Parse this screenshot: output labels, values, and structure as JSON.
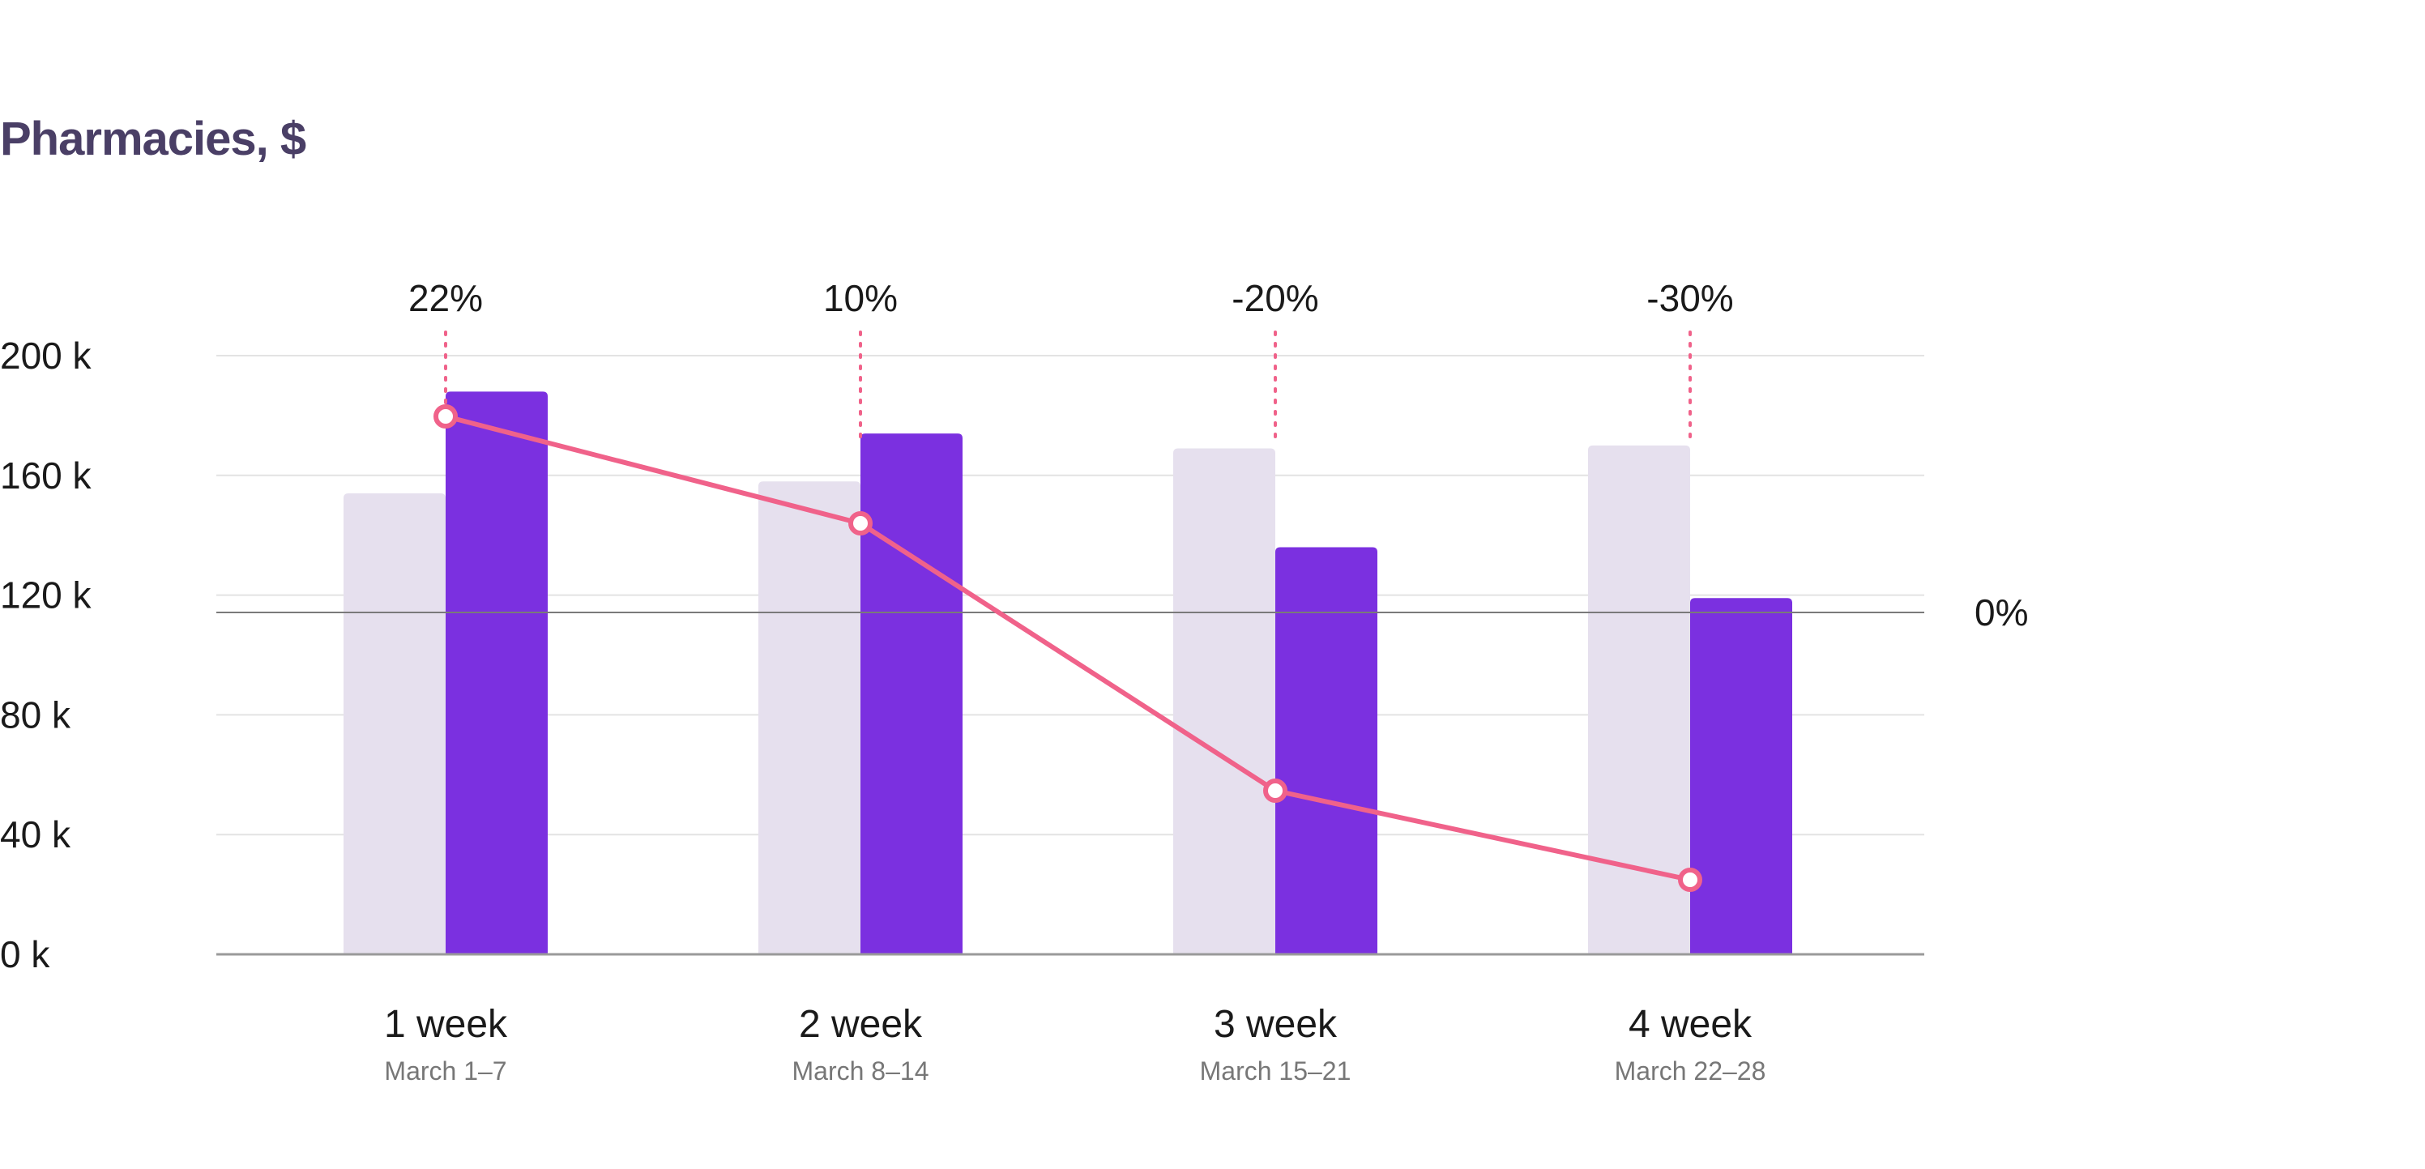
{
  "chart_data": {
    "type": "bar",
    "title": "Pharmacies, $",
    "categories": [
      "1 week",
      "2 week",
      "3 week",
      "4 week"
    ],
    "subcategories": [
      "March 1–7",
      "March 8–14",
      "March 15–21",
      "March 22–28"
    ],
    "series": [
      {
        "values": [
          154,
          158,
          169,
          170
        ],
        "color": "#e6e0ee"
      },
      {
        "values": [
          188,
          174,
          136,
          119
        ],
        "color": "#7b30e0"
      }
    ],
    "change_line": {
      "labels": [
        "22%",
        "10%",
        "-20%",
        "-30%"
      ],
      "values": [
        22,
        10,
        -20,
        -30
      ],
      "color": "#f0628a"
    },
    "ylim": [
      0,
      200
    ],
    "yticks": [
      0,
      40,
      80,
      120,
      160,
      200
    ],
    "ytick_labels": [
      "0 k",
      "40 k",
      "80 k",
      "120 k",
      "160 k",
      "200 k"
    ],
    "zero_line_label": "0%",
    "grid": true
  }
}
